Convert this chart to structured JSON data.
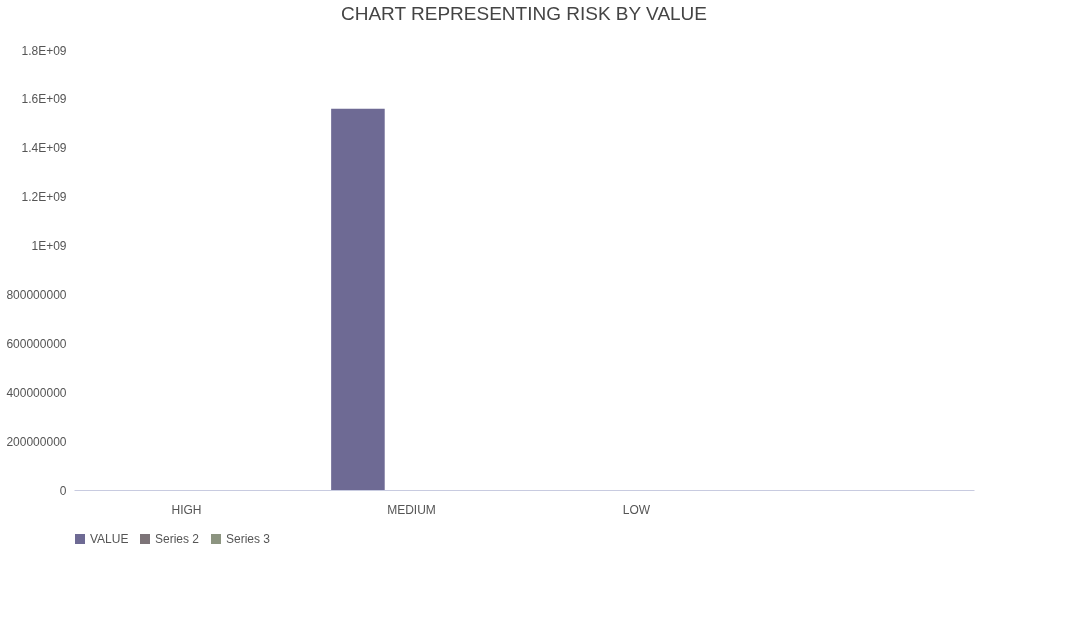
{
  "chart_data": {
    "type": "bar",
    "title": "CHART REPRESENTING RISK BY VALUE",
    "categories": [
      "HIGH",
      "MEDIUM",
      "LOW",
      null
    ],
    "series": [
      {
        "name": "VALUE",
        "color": "#6e6a94",
        "values": [
          null,
          1560000000,
          null,
          null
        ]
      },
      {
        "name": "Series 2",
        "color": "#7d7478",
        "values": [
          null,
          null,
          null,
          null
        ]
      },
      {
        "name": "Series 3",
        "color": "#8c9480",
        "values": [
          null,
          null,
          null,
          null
        ]
      }
    ],
    "ylim": [
      0,
      1800000000
    ],
    "yticks": [
      0,
      200000000,
      400000000,
      600000000,
      800000000,
      {
        "value": 1000000000,
        "label": "1E+09"
      },
      {
        "value": 1200000000,
        "label": "1.2E+09"
      },
      {
        "value": 1400000000,
        "label": "1.4E+09"
      },
      {
        "value": 1600000000,
        "label": "1.6E+09"
      },
      {
        "value": 1800000000,
        "label": "1.8E+09"
      }
    ],
    "grid": false,
    "legend": "bottom"
  }
}
